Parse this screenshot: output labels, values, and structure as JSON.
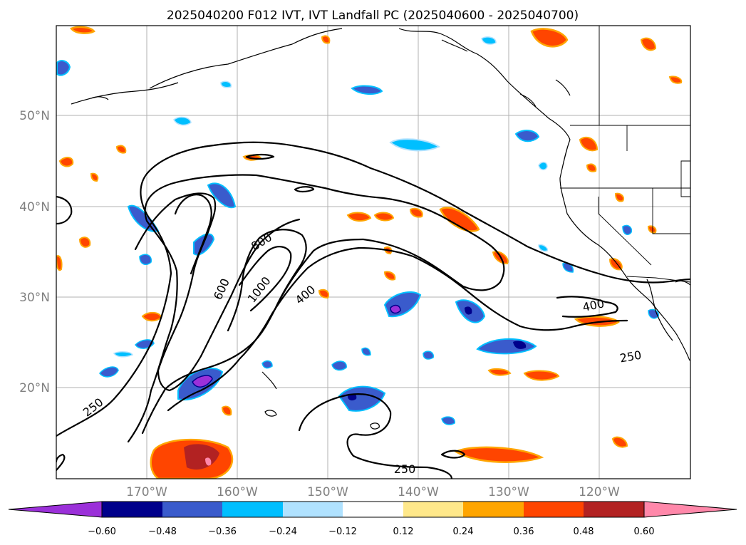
{
  "title": "2025040200 F012 IVT, IVT Landfall PC (2025040600 - 2025040700)",
  "lat_labels": [
    "50°N",
    "40°N",
    "30°N",
    "20°N"
  ],
  "lon_labels": [
    "170°W",
    "160°W",
    "150°W",
    "140°W",
    "130°W",
    "120°W"
  ],
  "contour_labels": [
    "800",
    "1000",
    "600",
    "400",
    "400",
    "250",
    "250",
    "250"
  ],
  "colorbar": {
    "ticks": [
      "−0.60",
      "−0.48",
      "−0.36",
      "−0.24",
      "−0.12",
      "0.12",
      "0.24",
      "0.36",
      "0.48",
      "0.60"
    ],
    "colors": [
      "#9b30d9",
      "#00008b",
      "#3a5bcc",
      "#00bfff",
      "#b0e2ff",
      "#ffffff",
      "#ffe88a",
      "#ffa500",
      "#ff4500",
      "#b22222",
      "#ff88aa"
    ]
  },
  "colors": {
    "positive_fill": "#ff4500",
    "positive_edge": "#ffa500",
    "negative_fill": "#3a5bcc",
    "negative_edge": "#00bfff"
  }
}
